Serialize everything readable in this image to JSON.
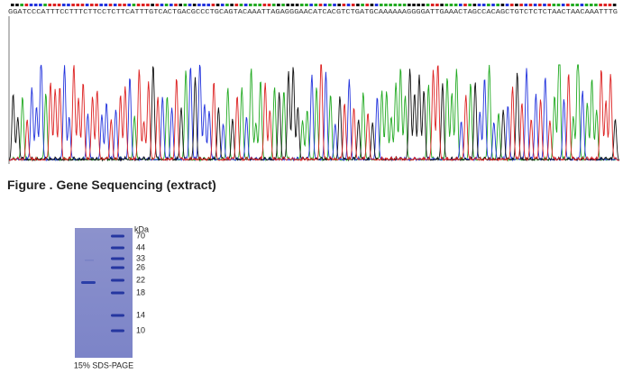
{
  "sequence": "GGATCCCATTTCCTTTCTTCCTCTTCATTTGTCACTGACGCCCTGCAGTACAAATTAGAGGGAACATCACGTCTGATGCAAAAAAGGGGATTGAAACTAGCCACAGCTGTCTCTCTAACTAACAAATTTG",
  "caption": "Figure . Gene Sequencing (extract)",
  "gel": {
    "unit": "kDa",
    "markers": [
      "70",
      "44",
      "33",
      "26",
      "22",
      "18",
      "14",
      "10"
    ],
    "caption": "15% SDS-PAGE"
  }
}
